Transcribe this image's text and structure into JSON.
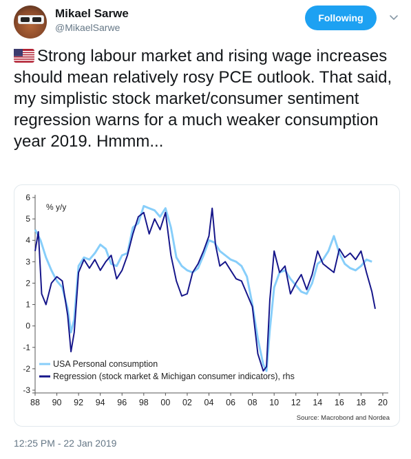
{
  "author": {
    "name": "Mikael Sarwe",
    "handle": "@MikaelSarwe",
    "avatar_icon": "avatar-photo-icon"
  },
  "follow_button": {
    "label": "Following",
    "color": "#1da1f2"
  },
  "menu_icon": "chevron-down-icon",
  "tweet": {
    "flag_icon": "us-flag-icon",
    "text": "Strong labour market and rising wage increases should mean relatively rosy PCE outlook. That said, my simplistic stock market/consumer sentiment regression warns for a much weaker consumption year 2019. Hmmm..."
  },
  "timestamp": "12:25 PM - 22 Jan 2019",
  "chart_data": {
    "type": "line",
    "unit_label": "% y/y",
    "source": "Source: Macrobond and Nordea",
    "xlim": [
      1988,
      2020
    ],
    "ylim": [
      -3,
      6
    ],
    "x_ticks": [
      "88",
      "90",
      "92",
      "94",
      "96",
      "98",
      "00",
      "02",
      "04",
      "06",
      "08",
      "10",
      "12",
      "14",
      "16",
      "18",
      "20"
    ],
    "y_ticks": [
      "6",
      "5",
      "4",
      "3",
      "2",
      "1",
      "0",
      "-1",
      "-2",
      "-3"
    ],
    "grid": false,
    "legend_position": "bottom-left",
    "series": [
      {
        "name": "USA Personal consumption",
        "color": "#87cefa",
        "x": [
          1988.0,
          1988.5,
          1989.0,
          1989.5,
          1990.0,
          1990.5,
          1991.0,
          1991.3,
          1991.6,
          1992.0,
          1992.5,
          1993.0,
          1993.5,
          1994.0,
          1994.5,
          1995.0,
          1995.5,
          1996.0,
          1996.5,
          1997.0,
          1997.5,
          1998.0,
          1998.5,
          1999.0,
          1999.5,
          2000.0,
          2000.5,
          2001.0,
          2001.5,
          2002.0,
          2002.5,
          2003.0,
          2003.5,
          2004.0,
          2004.5,
          2005.0,
          2005.5,
          2006.0,
          2006.5,
          2007.0,
          2007.5,
          2008.0,
          2008.5,
          2009.0,
          2009.3,
          2009.6,
          2010.0,
          2010.5,
          2011.0,
          2011.5,
          2012.0,
          2012.5,
          2013.0,
          2013.5,
          2014.0,
          2014.5,
          2015.0,
          2015.5,
          2016.0,
          2016.5,
          2017.0,
          2017.5,
          2018.0,
          2018.5,
          2019.0
        ],
        "y": [
          4.5,
          4.0,
          3.2,
          2.6,
          2.1,
          1.8,
          0.8,
          -0.3,
          0.3,
          2.8,
          3.2,
          3.1,
          3.4,
          3.8,
          3.6,
          2.9,
          2.8,
          3.3,
          3.4,
          4.6,
          4.8,
          5.6,
          5.5,
          5.4,
          5.1,
          5.5,
          4.6,
          3.2,
          2.8,
          2.6,
          2.5,
          2.7,
          3.3,
          4.0,
          3.9,
          3.5,
          3.3,
          3.1,
          3.0,
          2.8,
          2.3,
          1.0,
          -0.6,
          -1.8,
          -2.1,
          -0.2,
          1.8,
          2.5,
          2.6,
          2.2,
          1.9,
          1.6,
          1.5,
          2.0,
          2.9,
          3.1,
          3.5,
          4.2,
          3.4,
          2.9,
          2.7,
          2.6,
          2.8,
          3.1,
          3.0
        ]
      },
      {
        "name": "Regression (stock market & Michigan consumer indicators), rhs",
        "color": "#16168a",
        "x": [
          1988.0,
          1988.3,
          1988.6,
          1989.0,
          1989.5,
          1990.0,
          1990.5,
          1991.0,
          1991.3,
          1991.6,
          1992.0,
          1992.5,
          1993.0,
          1993.5,
          1994.0,
          1994.5,
          1995.0,
          1995.5,
          1996.0,
          1996.5,
          1997.0,
          1997.5,
          1998.0,
          1998.5,
          1999.0,
          1999.5,
          2000.0,
          2000.5,
          2001.0,
          2001.5,
          2002.0,
          2002.5,
          2003.0,
          2003.5,
          2004.0,
          2004.3,
          2004.6,
          2005.0,
          2005.5,
          2006.0,
          2006.5,
          2007.0,
          2007.5,
          2008.0,
          2008.5,
          2009.0,
          2009.3,
          2009.6,
          2010.0,
          2010.5,
          2011.0,
          2011.5,
          2012.0,
          2012.5,
          2013.0,
          2013.5,
          2014.0,
          2014.5,
          2015.0,
          2015.5,
          2016.0,
          2016.5,
          2017.0,
          2017.5,
          2018.0,
          2018.5,
          2019.0,
          2019.3
        ],
        "y": [
          3.5,
          4.4,
          1.5,
          1.0,
          2.0,
          2.3,
          2.1,
          0.5,
          -1.2,
          -0.3,
          2.5,
          3.1,
          2.7,
          3.1,
          2.6,
          3.0,
          3.3,
          2.2,
          2.6,
          3.3,
          4.3,
          5.1,
          5.3,
          4.3,
          5.0,
          4.5,
          5.3,
          3.3,
          2.1,
          1.4,
          1.5,
          2.5,
          2.9,
          3.5,
          4.2,
          5.5,
          3.8,
          2.8,
          3.0,
          2.6,
          2.2,
          2.1,
          1.5,
          0.9,
          -1.3,
          -2.1,
          -1.9,
          1.2,
          3.5,
          2.5,
          2.8,
          1.5,
          2.0,
          2.4,
          1.7,
          2.4,
          3.5,
          2.9,
          2.7,
          2.5,
          3.6,
          3.2,
          3.4,
          3.1,
          3.5,
          2.5,
          1.6,
          0.8
        ]
      }
    ]
  }
}
